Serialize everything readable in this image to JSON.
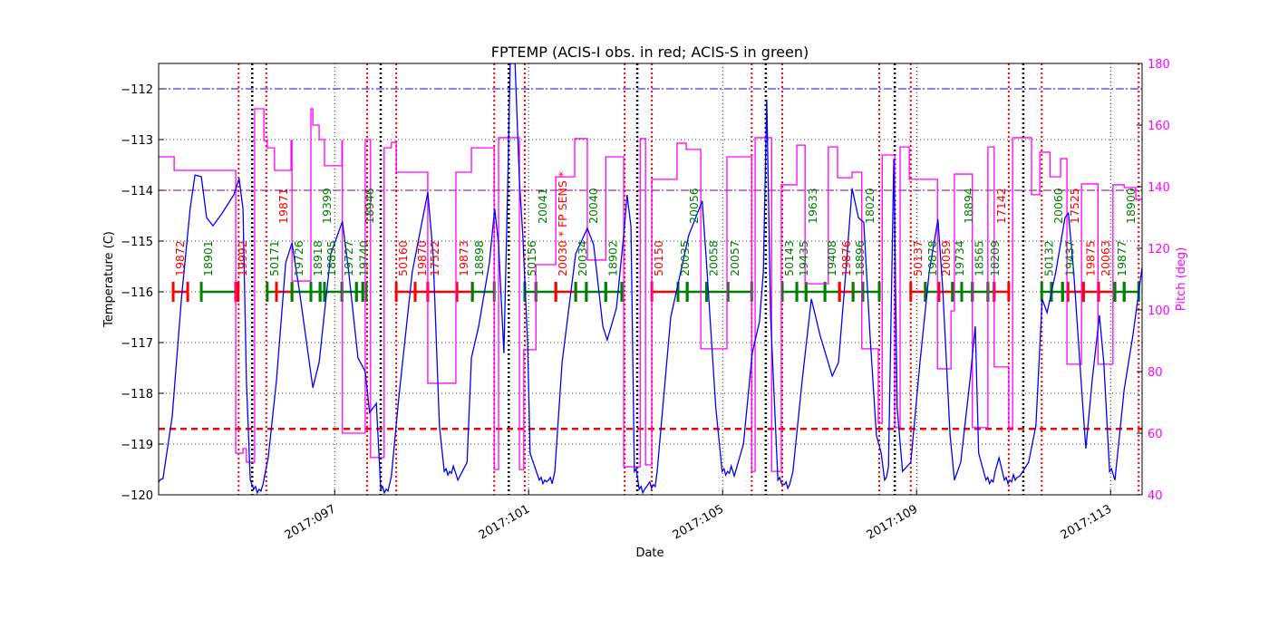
{
  "chart_data": {
    "type": "line",
    "title": "FPTEMP (ACIS-I obs. in red; ACIS-S in green)",
    "xlabel": "Date",
    "ylabel": "Temperature (C)",
    "y2label": "Pitch (deg)",
    "xlim": [
      93.37,
      113.65
    ],
    "ylim": [
      -120,
      -111.5
    ],
    "y2lim": [
      40,
      180
    ],
    "grid": true,
    "x_ticks": [
      {
        "value": 97,
        "label": "2017:097"
      },
      {
        "value": 101,
        "label": "2017:101"
      },
      {
        "value": 105,
        "label": "2017:105"
      },
      {
        "value": 109,
        "label": "2017:109"
      },
      {
        "value": 113,
        "label": "2017:113"
      }
    ],
    "y_ticks": [
      -120,
      -119,
      -118,
      -117,
      -116,
      -115,
      -114,
      -113,
      -112
    ],
    "y2_ticks": [
      40,
      60,
      80,
      100,
      120,
      140,
      160,
      180
    ],
    "colors": {
      "temperature": "#0000ff",
      "pitch": "#ff00ff",
      "acis_i": "#ff0000",
      "acis_s": "#008000",
      "planning_limit": "#0000ff",
      "yellow_limit": "#800080",
      "acis_limit": "#ff0000",
      "comm": "#000000"
    },
    "hlines": [
      {
        "value": -112.0,
        "color": "#0000ff",
        "style": "dashdot"
      },
      {
        "value": -114.0,
        "color": "#800080",
        "style": "dashdot"
      },
      {
        "value": -118.7,
        "color": "#ff0000",
        "style": "dashed"
      }
    ],
    "red_vlines": [
      95.02,
      95.59,
      97.67,
      98.27,
      100.29,
      100.92,
      102.98,
      103.54,
      105.6,
      106.23,
      108.23,
      108.88,
      110.9,
      111.58,
      113.58
    ],
    "black_vlines": [
      95.3,
      97.95,
      100.59,
      103.24,
      105.89,
      108.55,
      111.2
    ],
    "temperature": [
      [
        93.37,
        -119.75
      ],
      [
        93.46,
        -119.68
      ],
      [
        93.65,
        -118.46
      ],
      [
        93.84,
        -116.14
      ],
      [
        94.02,
        -114.36
      ],
      [
        94.12,
        -113.7
      ],
      [
        94.25,
        -113.73
      ],
      [
        94.36,
        -114.54
      ],
      [
        94.49,
        -114.7
      ],
      [
        94.68,
        -114.45
      ],
      [
        94.92,
        -114.09
      ],
      [
        95.03,
        -113.77
      ],
      [
        95.11,
        -114.36
      ],
      [
        95.18,
        -117.75
      ],
      [
        95.26,
        -119.71
      ],
      [
        95.33,
        -119.89
      ],
      [
        95.52,
        -119.8
      ],
      [
        95.63,
        -119.27
      ],
      [
        95.8,
        -117.75
      ],
      [
        95.99,
        -115.43
      ],
      [
        96.12,
        -115.04
      ],
      [
        96.27,
        -115.96
      ],
      [
        96.55,
        -117.89
      ],
      [
        96.68,
        -117.39
      ],
      [
        96.92,
        -115.25
      ],
      [
        97.16,
        -114.61
      ],
      [
        97.29,
        -115.61
      ],
      [
        97.48,
        -117.3
      ],
      [
        97.63,
        -117.57
      ],
      [
        97.72,
        -118.38
      ],
      [
        97.86,
        -118.2
      ],
      [
        97.95,
        -119.89
      ],
      [
        98.17,
        -119.63
      ],
      [
        98.32,
        -118.11
      ],
      [
        98.6,
        -115.61
      ],
      [
        98.92,
        -114.04
      ],
      [
        99.03,
        -115.25
      ],
      [
        99.16,
        -118.64
      ],
      [
        99.26,
        -119.54
      ],
      [
        99.54,
        -119.71
      ],
      [
        99.73,
        -119.36
      ],
      [
        99.82,
        -117.3
      ],
      [
        99.97,
        -116.68
      ],
      [
        100.19,
        -115.43
      ],
      [
        100.3,
        -114.36
      ],
      [
        100.38,
        -115.07
      ],
      [
        100.49,
        -117.21
      ],
      [
        100.57,
        -113.82
      ],
      [
        100.62,
        -111.5
      ],
      [
        100.72,
        -111.32
      ],
      [
        100.81,
        -113.82
      ],
      [
        100.88,
        -114.89
      ],
      [
        100.98,
        -117.04
      ],
      [
        101.03,
        -119.18
      ],
      [
        101.22,
        -119.71
      ],
      [
        101.41,
        -119.71
      ],
      [
        101.54,
        -119.54
      ],
      [
        101.69,
        -117.39
      ],
      [
        101.97,
        -115.25
      ],
      [
        102.21,
        -114.75
      ],
      [
        102.34,
        -115.07
      ],
      [
        102.53,
        -116.68
      ],
      [
        102.62,
        -116.95
      ],
      [
        102.81,
        -116.32
      ],
      [
        102.96,
        -114.89
      ],
      [
        103.03,
        -114.09
      ],
      [
        103.11,
        -114.71
      ],
      [
        103.18,
        -119.54
      ],
      [
        103.28,
        -119.89
      ],
      [
        103.46,
        -119.8
      ],
      [
        103.65,
        -119.54
      ],
      [
        103.93,
        -116.5
      ],
      [
        104.3,
        -114.89
      ],
      [
        104.58,
        -114.21
      ],
      [
        104.68,
        -115.61
      ],
      [
        104.86,
        -118.29
      ],
      [
        104.99,
        -119.54
      ],
      [
        105.24,
        -119.63
      ],
      [
        105.43,
        -119.0
      ],
      [
        105.61,
        -117.21
      ],
      [
        105.76,
        -116.59
      ],
      [
        105.84,
        -115.61
      ],
      [
        105.91,
        -112.21
      ],
      [
        105.99,
        -116.5
      ],
      [
        106.14,
        -119.71
      ],
      [
        106.27,
        -119.8
      ],
      [
        106.45,
        -119.54
      ],
      [
        106.64,
        -117.75
      ],
      [
        106.83,
        -116.14
      ],
      [
        107.01,
        -116.86
      ],
      [
        107.26,
        -117.66
      ],
      [
        107.39,
        -117.39
      ],
      [
        107.54,
        -115.61
      ],
      [
        107.67,
        -113.96
      ],
      [
        107.8,
        -114.54
      ],
      [
        107.91,
        -114.63
      ],
      [
        108.04,
        -116.86
      ],
      [
        108.17,
        -118.82
      ],
      [
        108.27,
        -119.18
      ],
      [
        108.34,
        -119.71
      ],
      [
        108.42,
        -119.45
      ],
      [
        108.53,
        -113.38
      ],
      [
        108.6,
        -118.29
      ],
      [
        108.71,
        -119.54
      ],
      [
        108.88,
        -119.36
      ],
      [
        109.07,
        -117.39
      ],
      [
        109.26,
        -115.61
      ],
      [
        109.44,
        -114.57
      ],
      [
        109.54,
        -115.96
      ],
      [
        109.69,
        -118.82
      ],
      [
        109.78,
        -119.71
      ],
      [
        109.91,
        -119.36
      ],
      [
        110.1,
        -117.75
      ],
      [
        110.21,
        -116.68
      ],
      [
        110.28,
        -119.18
      ],
      [
        110.43,
        -119.71
      ],
      [
        110.62,
        -119.54
      ],
      [
        110.7,
        -119.27
      ],
      [
        110.81,
        -119.71
      ],
      [
        111.13,
        -119.63
      ],
      [
        111.31,
        -119.36
      ],
      [
        111.46,
        -118.64
      ],
      [
        111.59,
        -116.14
      ],
      [
        111.69,
        -116.41
      ],
      [
        111.87,
        -115.61
      ],
      [
        112.06,
        -114.54
      ],
      [
        112.13,
        -114.45
      ],
      [
        112.24,
        -115.61
      ],
      [
        112.43,
        -118.29
      ],
      [
        112.49,
        -119.09
      ],
      [
        112.62,
        -117.75
      ],
      [
        112.77,
        -116.46
      ],
      [
        112.86,
        -117.39
      ],
      [
        112.98,
        -119.54
      ],
      [
        113.09,
        -119.71
      ],
      [
        113.28,
        -117.93
      ],
      [
        113.46,
        -116.86
      ],
      [
        113.65,
        -115.52
      ]
    ],
    "pitch_steps": [
      [
        93.37,
        149.7
      ],
      [
        93.69,
        145.3
      ],
      [
        94.96,
        53.5
      ],
      [
        95.11,
        55.0
      ],
      [
        95.18,
        50.6
      ],
      [
        95.35,
        165.3
      ],
      [
        95.54,
        155.0
      ],
      [
        95.61,
        152.6
      ],
      [
        95.76,
        145.3
      ],
      [
        96.1,
        155.0
      ],
      [
        96.12,
        109.4
      ],
      [
        96.51,
        165.3
      ],
      [
        96.55,
        160.0
      ],
      [
        96.68,
        155.3
      ],
      [
        96.79,
        146.8
      ],
      [
        97.15,
        155.0
      ],
      [
        97.16,
        60.0
      ],
      [
        97.63,
        155.3
      ],
      [
        97.74,
        52.1
      ],
      [
        98.02,
        152.6
      ],
      [
        98.17,
        154.4
      ],
      [
        98.27,
        144.7
      ],
      [
        98.92,
        76.2
      ],
      [
        99.5,
        144.7
      ],
      [
        99.82,
        152.6
      ],
      [
        100.29,
        48.2
      ],
      [
        100.38,
        155.9
      ],
      [
        100.81,
        48.2
      ],
      [
        100.9,
        87.1
      ],
      [
        101.15,
        114.7
      ],
      [
        101.56,
        143.2
      ],
      [
        101.95,
        155.6
      ],
      [
        102.21,
        116.2
      ],
      [
        102.59,
        149.7
      ],
      [
        102.96,
        49.1
      ],
      [
        103.3,
        155.6
      ],
      [
        103.41,
        49.7
      ],
      [
        103.54,
        142.4
      ],
      [
        104.06,
        154.1
      ],
      [
        104.25,
        152.1
      ],
      [
        104.55,
        87.4
      ],
      [
        105.09,
        149.7
      ],
      [
        105.6,
        47.6
      ],
      [
        105.67,
        155.9
      ],
      [
        106.01,
        47.6
      ],
      [
        106.21,
        140.6
      ],
      [
        106.53,
        153.5
      ],
      [
        106.7,
        108.5
      ],
      [
        107.18,
        152.9
      ],
      [
        107.37,
        142.9
      ],
      [
        107.67,
        144.7
      ],
      [
        107.87,
        87.4
      ],
      [
        108.21,
        63.2
      ],
      [
        108.29,
        150.3
      ],
      [
        108.55,
        61.8
      ],
      [
        108.66,
        152.9
      ],
      [
        108.85,
        142.4
      ],
      [
        109.43,
        80.9
      ],
      [
        109.71,
        99.7
      ],
      [
        109.78,
        144.1
      ],
      [
        110.15,
        61.8
      ],
      [
        110.47,
        152.9
      ],
      [
        110.6,
        81.5
      ],
      [
        110.9,
        61.8
      ],
      [
        110.98,
        155.9
      ],
      [
        111.37,
        137.4
      ],
      [
        111.54,
        151.2
      ],
      [
        111.75,
        143.2
      ],
      [
        111.97,
        149.1
      ],
      [
        112.1,
        82.4
      ],
      [
        112.4,
        140.9
      ],
      [
        112.74,
        82.4
      ],
      [
        113.05,
        140.6
      ],
      [
        113.28,
        139.7
      ],
      [
        113.52,
        135.9
      ],
      [
        113.65,
        135.9
      ]
    ],
    "observations": [
      {
        "obsid": "19872",
        "det": "I",
        "start": 93.67,
        "stop": 93.97
      },
      {
        "obsid": "18901",
        "det": "S",
        "start": 94.25,
        "stop": 94.96
      },
      {
        "obsid": "19992",
        "det": "I",
        "start": 94.96,
        "stop": 95.01
      },
      {
        "obsid": "50171",
        "det": "S",
        "start": 95.61,
        "stop": 95.8
      },
      {
        "obsid": "19871",
        "det": "I",
        "start": 95.8,
        "stop": 96.12
      },
      {
        "obsid": "19726",
        "det": "S",
        "start": 96.12,
        "stop": 96.51
      },
      {
        "obsid": "18918",
        "det": "S",
        "start": 96.51,
        "stop": 96.7
      },
      {
        "obsid": "19399",
        "det": "S",
        "start": 96.7,
        "stop": 96.79
      },
      {
        "obsid": "18895",
        "det": "S",
        "start": 96.79,
        "stop": 97.15
      },
      {
        "obsid": "19727",
        "det": "S",
        "start": 97.15,
        "stop": 97.45
      },
      {
        "obsid": "19740",
        "det": "S",
        "start": 97.45,
        "stop": 97.58
      },
      {
        "obsid": "18946",
        "det": "S",
        "start": 97.58,
        "stop": 97.65
      },
      {
        "obsid": "50160",
        "det": "I",
        "start": 98.27,
        "stop": 98.66
      },
      {
        "obsid": "19870",
        "det": "I",
        "start": 98.66,
        "stop": 98.92
      },
      {
        "obsid": "17522",
        "det": "I",
        "start": 98.92,
        "stop": 99.52
      },
      {
        "obsid": "19873",
        "det": "I",
        "start": 99.52,
        "stop": 99.84
      },
      {
        "obsid": "18898",
        "det": "S",
        "start": 99.84,
        "stop": 100.29
      },
      {
        "obsid": "50156",
        "det": "S",
        "start": 100.92,
        "stop": 101.15
      },
      {
        "obsid": "20041",
        "det": "S",
        "start": 101.15,
        "stop": 101.56
      },
      {
        "obsid": "20030 * FP SENS *",
        "det": "I",
        "start": 101.56,
        "stop": 101.97
      },
      {
        "obsid": "20034",
        "det": "S",
        "start": 101.97,
        "stop": 102.19
      },
      {
        "obsid": "20040",
        "det": "S",
        "start": 102.19,
        "stop": 102.59
      },
      {
        "obsid": "18902",
        "det": "S",
        "start": 102.59,
        "stop": 102.92
      },
      {
        "obsid": "50150",
        "det": "I",
        "start": 103.54,
        "stop": 104.08
      },
      {
        "obsid": "20035",
        "det": "S",
        "start": 104.08,
        "stop": 104.27
      },
      {
        "obsid": "20056",
        "det": "S",
        "start": 104.27,
        "stop": 104.67
      },
      {
        "obsid": "20058",
        "det": "S",
        "start": 104.67,
        "stop": 105.11
      },
      {
        "obsid": "20057",
        "det": "S",
        "start": 105.11,
        "stop": 105.6
      },
      {
        "obsid": "50143",
        "det": "S",
        "start": 106.23,
        "stop": 106.53
      },
      {
        "obsid": "19435",
        "det": "S",
        "start": 106.53,
        "stop": 106.72
      },
      {
        "obsid": "19633",
        "det": "S",
        "start": 106.72,
        "stop": 107.11
      },
      {
        "obsid": "19408",
        "det": "S",
        "start": 107.11,
        "stop": 107.41
      },
      {
        "obsid": "19876",
        "det": "I",
        "start": 107.41,
        "stop": 107.69
      },
      {
        "obsid": "18896",
        "det": "S",
        "start": 107.69,
        "stop": 107.89
      },
      {
        "obsid": "18020",
        "det": "S",
        "start": 107.89,
        "stop": 108.23
      },
      {
        "obsid": "50137",
        "det": "I",
        "start": 108.88,
        "stop": 109.18
      },
      {
        "obsid": "19878",
        "det": "S",
        "start": 109.18,
        "stop": 109.46
      },
      {
        "obsid": "20059",
        "det": "I",
        "start": 109.46,
        "stop": 109.74
      },
      {
        "obsid": "19734",
        "det": "S",
        "start": 109.74,
        "stop": 109.93
      },
      {
        "obsid": "18894",
        "det": "S",
        "start": 109.93,
        "stop": 110.15
      },
      {
        "obsid": "18565",
        "det": "S",
        "start": 110.15,
        "stop": 110.47
      },
      {
        "obsid": "18209",
        "det": "S",
        "start": 110.47,
        "stop": 110.6
      },
      {
        "obsid": "17142",
        "det": "I",
        "start": 110.6,
        "stop": 110.9
      },
      {
        "obsid": "50132",
        "det": "S",
        "start": 111.58,
        "stop": 111.78
      },
      {
        "obsid": "20060",
        "det": "S",
        "start": 111.78,
        "stop": 112.01
      },
      {
        "obsid": "19437",
        "det": "S",
        "start": 112.01,
        "stop": 112.12
      },
      {
        "obsid": "17525",
        "det": "I",
        "start": 112.12,
        "stop": 112.44
      },
      {
        "obsid": "19875",
        "det": "I",
        "start": 112.44,
        "stop": 112.75
      },
      {
        "obsid": "20063",
        "det": "I",
        "start": 112.75,
        "stop": 113.09
      },
      {
        "obsid": "19877",
        "det": "S",
        "start": 113.09,
        "stop": 113.28
      },
      {
        "obsid": "18900",
        "det": "S",
        "start": 113.28,
        "stop": 113.58
      }
    ]
  }
}
